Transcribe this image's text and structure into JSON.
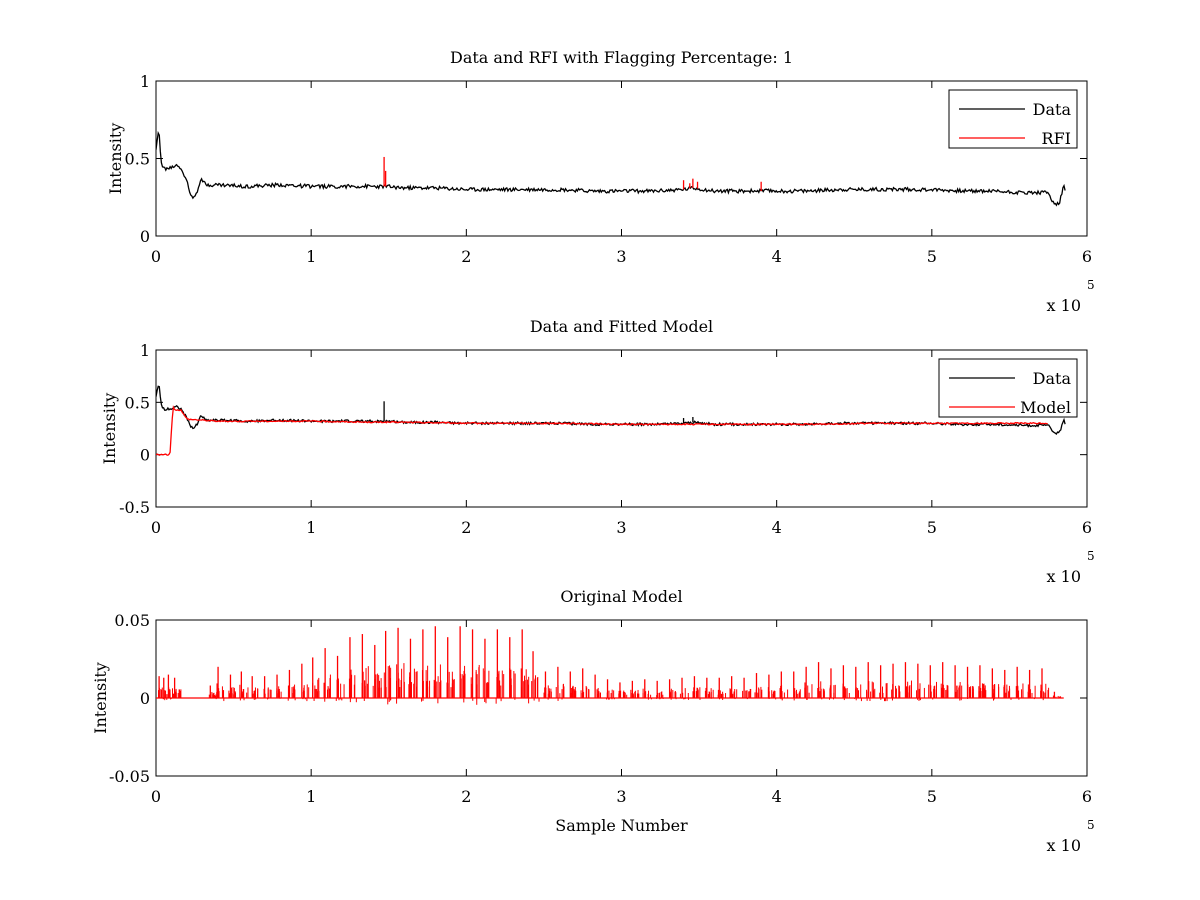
{
  "chart_data": [
    {
      "type": "line",
      "title": "Data and RFI with Flagging Percentage: 1",
      "xlabel": "",
      "ylabel": "Intensity",
      "xlim": [
        0,
        600000
      ],
      "ylim": [
        0,
        1
      ],
      "xticks": [
        0,
        100000,
        200000,
        300000,
        400000,
        500000,
        600000
      ],
      "xtick_labels": [
        "0",
        "1",
        "2",
        "3",
        "4",
        "5",
        "6"
      ],
      "yticks": [
        0,
        0.5,
        1
      ],
      "ytick_labels": [
        "0",
        "0.5",
        "1"
      ],
      "x_multiplier_label": "x 10",
      "x_multiplier_exponent": "5",
      "legend_position": "top-right",
      "grid": false,
      "series": [
        {
          "name": "Data",
          "color": "#000000",
          "x": [
            0,
            1500,
            2500,
            3000,
            4000,
            6000,
            8000,
            10000,
            13000,
            16000,
            20000,
            22000,
            24000,
            27000,
            29000,
            32000,
            40000,
            60000,
            80000,
            100000,
            120000,
            140000,
            148000,
            160000,
            180000,
            200000,
            220000,
            240000,
            260000,
            280000,
            300000,
            310000,
            320000,
            340000,
            346000,
            360000,
            380000,
            390000,
            400000,
            420000,
            440000,
            460000,
            480000,
            500000,
            520000,
            540000,
            560000,
            575000,
            578000,
            582000,
            585000,
            586000
          ],
          "y": [
            0.55,
            0.67,
            0.64,
            0.5,
            0.45,
            0.43,
            0.44,
            0.44,
            0.46,
            0.44,
            0.35,
            0.27,
            0.25,
            0.3,
            0.38,
            0.33,
            0.33,
            0.32,
            0.33,
            0.32,
            0.32,
            0.32,
            0.32,
            0.31,
            0.31,
            0.3,
            0.3,
            0.3,
            0.3,
            0.29,
            0.29,
            0.29,
            0.29,
            0.3,
            0.31,
            0.29,
            0.29,
            0.29,
            0.29,
            0.29,
            0.3,
            0.3,
            0.3,
            0.3,
            0.29,
            0.29,
            0.28,
            0.28,
            0.22,
            0.2,
            0.33,
            0.29
          ],
          "noise": 0.012
        },
        {
          "name": "RFI",
          "color": "#ff0000",
          "spikes": [
            [
              147000,
              0.51
            ],
            [
              148000,
              0.42
            ],
            [
              340000,
              0.36
            ],
            [
              344000,
              0.34
            ],
            [
              346000,
              0.37
            ],
            [
              349000,
              0.35
            ],
            [
              390000,
              0.35
            ]
          ]
        }
      ]
    },
    {
      "type": "line",
      "title": "Data and Fitted Model",
      "xlabel": "",
      "ylabel": "Intensity",
      "xlim": [
        0,
        600000
      ],
      "ylim": [
        -0.5,
        1
      ],
      "xticks": [
        0,
        100000,
        200000,
        300000,
        400000,
        500000,
        600000
      ],
      "xtick_labels": [
        "0",
        "1",
        "2",
        "3",
        "4",
        "5",
        "6"
      ],
      "yticks": [
        -0.5,
        0,
        0.5,
        1
      ],
      "ytick_labels": [
        "-0.5",
        "0",
        "0.5",
        "1"
      ],
      "x_multiplier_label": "x 10",
      "x_multiplier_exponent": "5",
      "legend_position": "top-right",
      "grid": false,
      "series": [
        {
          "name": "Data",
          "color": "#000000",
          "x": [
            0,
            1500,
            2500,
            3000,
            4000,
            6000,
            8000,
            10000,
            13000,
            16000,
            20000,
            22000,
            24000,
            27000,
            29000,
            32000,
            40000,
            60000,
            80000,
            100000,
            120000,
            140000,
            148000,
            160000,
            180000,
            200000,
            220000,
            240000,
            260000,
            280000,
            300000,
            310000,
            320000,
            340000,
            346000,
            360000,
            380000,
            390000,
            400000,
            420000,
            440000,
            460000,
            480000,
            500000,
            520000,
            540000,
            560000,
            575000,
            578000,
            582000,
            585000,
            586000
          ],
          "y": [
            0.55,
            0.67,
            0.64,
            0.5,
            0.45,
            0.43,
            0.44,
            0.44,
            0.46,
            0.44,
            0.35,
            0.27,
            0.25,
            0.3,
            0.38,
            0.33,
            0.33,
            0.32,
            0.33,
            0.32,
            0.32,
            0.32,
            0.32,
            0.31,
            0.31,
            0.3,
            0.3,
            0.3,
            0.3,
            0.29,
            0.29,
            0.29,
            0.29,
            0.3,
            0.31,
            0.29,
            0.29,
            0.29,
            0.29,
            0.29,
            0.3,
            0.3,
            0.3,
            0.3,
            0.29,
            0.29,
            0.28,
            0.28,
            0.22,
            0.2,
            0.33,
            0.29
          ],
          "noise": 0.012,
          "spikes": [
            [
              147000,
              0.51
            ],
            [
              340000,
              0.35
            ],
            [
              346000,
              0.36
            ]
          ]
        },
        {
          "name": "Model",
          "color": "#ff0000",
          "x": [
            0,
            9000,
            10000,
            11000,
            13000,
            16000,
            20000,
            40000,
            60000,
            80000,
            100000,
            140000,
            160000,
            200000,
            260000,
            300000,
            340000,
            380000,
            420000,
            460000,
            500000,
            540000,
            575000
          ],
          "y": [
            0.0,
            0.0,
            0.25,
            0.45,
            0.42,
            0.43,
            0.34,
            0.32,
            0.32,
            0.32,
            0.32,
            0.31,
            0.31,
            0.3,
            0.3,
            0.29,
            0.29,
            0.29,
            0.29,
            0.3,
            0.3,
            0.3,
            0.3
          ],
          "noise": 0.006
        }
      ]
    },
    {
      "type": "line",
      "title": "Original Model",
      "xlabel": "Sample Number",
      "ylabel": "Intensity",
      "xlim": [
        0,
        600000
      ],
      "ylim": [
        -0.05,
        0.05
      ],
      "xticks": [
        0,
        100000,
        200000,
        300000,
        400000,
        500000,
        600000
      ],
      "xtick_labels": [
        "0",
        "1",
        "2",
        "3",
        "4",
        "5",
        "6"
      ],
      "yticks": [
        -0.05,
        0,
        0.05
      ],
      "ytick_labels": [
        "-0.05",
        "0",
        "0.05"
      ],
      "x_multiplier_label": "x 10",
      "x_multiplier_exponent": "5",
      "grid": false,
      "series": [
        {
          "color": "#ff0000",
          "baseline": 0,
          "spikes": [
            [
              2000,
              0.014
            ],
            [
              5000,
              0.013
            ],
            [
              8000,
              0.015
            ],
            [
              12000,
              0.013
            ],
            [
              35000,
              0.008
            ],
            [
              40000,
              0.02
            ],
            [
              48000,
              0.015
            ],
            [
              55000,
              0.017
            ],
            [
              62000,
              0.014
            ],
            [
              70000,
              0.014
            ],
            [
              78000,
              0.015
            ],
            [
              86000,
              0.018
            ],
            [
              94000,
              0.022
            ],
            [
              101000,
              0.026
            ],
            [
              109000,
              0.032
            ],
            [
              117000,
              0.027
            ],
            [
              125000,
              0.039
            ],
            [
              133000,
              0.041
            ],
            [
              141000,
              0.034
            ],
            [
              148000,
              0.043
            ],
            [
              156000,
              0.045
            ],
            [
              164000,
              0.038
            ],
            [
              172000,
              0.044
            ],
            [
              180000,
              0.046
            ],
            [
              188000,
              0.039
            ],
            [
              196000,
              0.046
            ],
            [
              204000,
              0.044
            ],
            [
              212000,
              0.038
            ],
            [
              220000,
              0.044
            ],
            [
              228000,
              0.039
            ],
            [
              236000,
              0.044
            ],
            [
              243000,
              0.03
            ],
            [
              251000,
              0.017
            ],
            [
              259000,
              0.02
            ],
            [
              267000,
              0.017
            ],
            [
              275000,
              0.019
            ],
            [
              283000,
              0.015
            ],
            [
              291000,
              0.012
            ],
            [
              299000,
              0.01
            ],
            [
              307000,
              0.011
            ],
            [
              315000,
              0.012
            ],
            [
              323000,
              0.011
            ],
            [
              331000,
              0.012
            ],
            [
              339000,
              0.013
            ],
            [
              347000,
              0.014
            ],
            [
              355000,
              0.013
            ],
            [
              363000,
              0.013
            ],
            [
              371000,
              0.014
            ],
            [
              379000,
              0.013
            ],
            [
              387000,
              0.016
            ],
            [
              395000,
              0.015
            ],
            [
              403000,
              0.017
            ],
            [
              411000,
              0.017
            ],
            [
              419000,
              0.02
            ],
            [
              427000,
              0.023
            ],
            [
              435000,
              0.019
            ],
            [
              443000,
              0.021
            ],
            [
              451000,
              0.02
            ],
            [
              459000,
              0.023
            ],
            [
              467000,
              0.021
            ],
            [
              475000,
              0.022
            ],
            [
              483000,
              0.023
            ],
            [
              491000,
              0.022
            ],
            [
              499000,
              0.021
            ],
            [
              507000,
              0.023
            ],
            [
              515000,
              0.021
            ],
            [
              523000,
              0.02
            ],
            [
              531000,
              0.021
            ],
            [
              539000,
              0.019
            ],
            [
              547000,
              0.018
            ],
            [
              555000,
              0.02
            ],
            [
              563000,
              0.018
            ],
            [
              571000,
              0.019
            ],
            [
              579000,
              0.004
            ]
          ]
        }
      ]
    }
  ]
}
